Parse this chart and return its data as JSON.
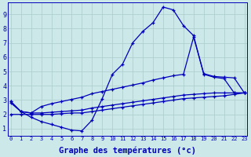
{
  "background_color": "#cce8e8",
  "grid_color": "#aacccc",
  "line_color": "#0000bb",
  "xlabel": "Graphe des températures (°c)",
  "xlabel_fontsize": 7.5,
  "xlim_min": -0.3,
  "xlim_max": 23.3,
  "ylim_min": 0.5,
  "ylim_max": 9.8,
  "xticks": [
    0,
    1,
    2,
    3,
    4,
    5,
    6,
    7,
    8,
    9,
    10,
    11,
    12,
    13,
    14,
    15,
    16,
    17,
    18,
    19,
    20,
    21,
    22,
    23
  ],
  "yticks": [
    1,
    2,
    3,
    4,
    5,
    6,
    7,
    8,
    9
  ],
  "hours": [
    0,
    1,
    2,
    3,
    4,
    5,
    6,
    7,
    8,
    9,
    10,
    11,
    12,
    13,
    14,
    15,
    16,
    17,
    18,
    19,
    20,
    21,
    22,
    23
  ],
  "curve1": [
    2.9,
    2.2,
    1.8,
    1.5,
    1.3,
    1.1,
    0.9,
    0.85,
    1.6,
    3.1,
    4.8,
    5.5,
    7.0,
    7.8,
    8.4,
    9.5,
    9.3,
    8.2,
    7.5,
    4.8,
    4.6,
    4.5,
    3.5,
    3.5
  ],
  "curve2": [
    2.9,
    2.2,
    2.1,
    2.55,
    2.75,
    2.9,
    3.05,
    3.2,
    3.45,
    3.6,
    3.75,
    3.9,
    4.05,
    4.2,
    4.4,
    4.55,
    4.7,
    4.8,
    7.4,
    4.85,
    4.65,
    4.6,
    4.55,
    3.5
  ],
  "curve3": [
    2.8,
    2.2,
    2.1,
    2.1,
    2.15,
    2.2,
    2.25,
    2.3,
    2.45,
    2.55,
    2.65,
    2.75,
    2.85,
    2.95,
    3.05,
    3.15,
    3.25,
    3.35,
    3.4,
    3.45,
    3.5,
    3.5,
    3.5,
    3.5
  ],
  "curve4": [
    2.0,
    2.0,
    2.0,
    2.0,
    2.0,
    2.05,
    2.1,
    2.1,
    2.2,
    2.3,
    2.4,
    2.5,
    2.6,
    2.7,
    2.8,
    2.9,
    3.0,
    3.1,
    3.15,
    3.2,
    3.25,
    3.3,
    3.4,
    3.5
  ]
}
